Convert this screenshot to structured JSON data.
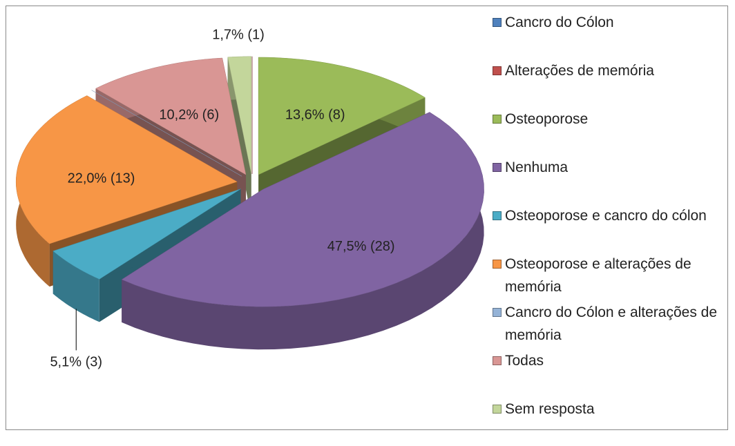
{
  "chart_data": {
    "type": "pie",
    "categories": [
      "Cancro do Cólon",
      "Alterações de memória",
      "Osteoporose",
      "Nenhuma",
      "Osteoporose e cancro do cólon",
      "Osteoporose e alterações de memória",
      "Cancro do Cólon e alterações de memória",
      "Todas",
      "Sem resposta"
    ],
    "values": [
      0,
      0,
      13.6,
      47.5,
      5.1,
      22.0,
      0,
      10.2,
      1.7
    ],
    "value_labels": [
      null,
      null,
      "13,6% (8)",
      "47,5% (28)",
      "5,1% (3)",
      "22,0% (13)",
      null,
      "10,2% (6)",
      "1,7% (1)"
    ],
    "colors": [
      "#4f81bd",
      "#c0504d",
      "#9bbb59",
      "#8064a2",
      "#4bacc6",
      "#f79646",
      "#95b3d7",
      "#d99694",
      "#c3d69b"
    ],
    "legend": "right"
  }
}
